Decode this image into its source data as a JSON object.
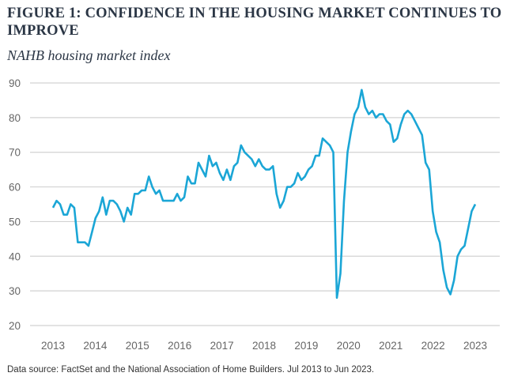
{
  "title": "FIGURE 1: CONFIDENCE IN THE HOUSING MARKET CONTINUES TO IMPROVE",
  "source": "Data source: FactSet and the National Association of Home Builders. Jul 2013 to Jun 2023.",
  "chart_data": {
    "type": "line",
    "title": "FIGURE 1: CONFIDENCE IN THE HOUSING MARKET CONTINUES TO IMPROVE",
    "subtitle": "NAHB housing market index",
    "xlabel": "",
    "ylabel": "",
    "x_start": "2013-07",
    "x_end": "2023-06",
    "frequency": "monthly",
    "x_tick_labels": [
      "2013",
      "2014",
      "2015",
      "2016",
      "2017",
      "2018",
      "2019",
      "2020",
      "2021",
      "2022",
      "2023"
    ],
    "y_ticks": [
      20,
      30,
      40,
      50,
      60,
      70,
      80,
      90
    ],
    "ylim": [
      20,
      90
    ],
    "grid": "horizontal",
    "line_color": "#1ba6d6",
    "series": [
      {
        "values": [
          54,
          56,
          55,
          52,
          52,
          55,
          54,
          44,
          44,
          44,
          43,
          47,
          51,
          53,
          57,
          52,
          56,
          56,
          55,
          53,
          50,
          54,
          52,
          58,
          58,
          59,
          59,
          63,
          60,
          58,
          59,
          56,
          56,
          56,
          56,
          58,
          56,
          57,
          63,
          61,
          61,
          67,
          65,
          63,
          69,
          66,
          67,
          64,
          62,
          65,
          62,
          66,
          67,
          72,
          70,
          69,
          68,
          66,
          68,
          66,
          65,
          65,
          66,
          58,
          54,
          56,
          60,
          60,
          61,
          64,
          62,
          63,
          65,
          66,
          69,
          69,
          74,
          73,
          72,
          70,
          28,
          35,
          56,
          70,
          76,
          81,
          83,
          88,
          83,
          81,
          82,
          80,
          81,
          81,
          79,
          78,
          73,
          74,
          78,
          81,
          82,
          81,
          79,
          77,
          75,
          67,
          65,
          53,
          47,
          44,
          36,
          31,
          29,
          33,
          40,
          42,
          43,
          48,
          53,
          55
        ]
      }
    ]
  }
}
